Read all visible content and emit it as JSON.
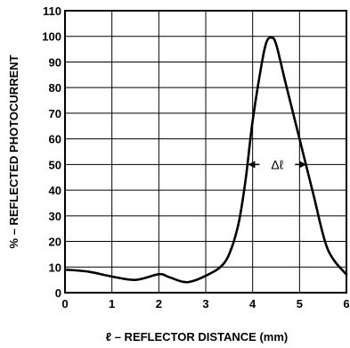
{
  "chart_data": {
    "type": "line",
    "xlabel": "ℓ – REFLECTOR DISTANCE (mm)",
    "ylabel": "% – REFLECTED PHOTOCURRENT",
    "xlim": [
      0,
      6
    ],
    "ylim": [
      0,
      110
    ],
    "x_ticks": [
      "0",
      "1",
      "2",
      "3",
      "4",
      "5",
      "6"
    ],
    "y_ticks": [
      "0",
      "10",
      "20",
      "30",
      "40",
      "50",
      "60",
      "70",
      "80",
      "90",
      "100",
      "110"
    ],
    "grid": true,
    "series": [
      {
        "x": [
          0,
          0.5,
          1,
          1.5,
          2,
          2.2,
          2.5,
          2.7,
          3,
          3.3,
          3.5,
          3.7,
          3.85,
          4,
          4.2,
          4.3,
          4.4,
          4.5,
          4.7,
          5,
          5.3,
          5.6,
          6
        ],
        "y": [
          9,
          8.2,
          6.3,
          5,
          7.2,
          6.2,
          4.3,
          4.4,
          6.6,
          9.8,
          15,
          27,
          44,
          67,
          90,
          98,
          99.5,
          97,
          82,
          60,
          38,
          17,
          7
        ]
      }
    ],
    "annotations": [
      {
        "text": "Δℓ",
        "x_from": 3.9,
        "x_to": 5.15,
        "y": 50
      }
    ],
    "colors": {
      "line": "#000000",
      "grid": "#000000",
      "background": "#ffffff"
    }
  }
}
